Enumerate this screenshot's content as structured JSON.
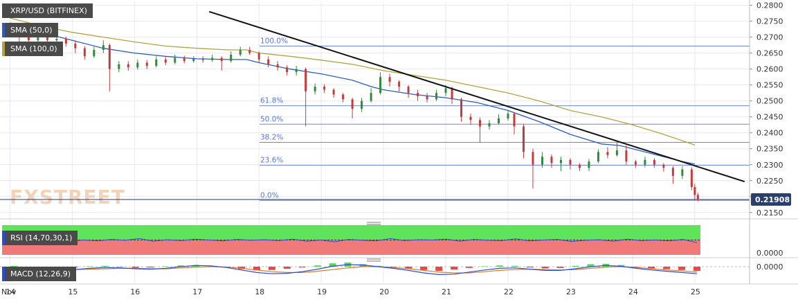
{
  "chart_data": {
    "type": "candlestick",
    "symbol_label": "XRP/USD (BITFINEX)",
    "price_axis": {
      "range": [
        0.213,
        0.281
      ],
      "ticks": [
        "0.2800",
        "0.2750",
        "0.2700",
        "0.2650",
        "0.2600",
        "0.2550",
        "0.2500",
        "0.2450",
        "0.2400",
        "0.2350",
        "0.2300",
        "0.2250",
        "0.2200",
        "0.2150"
      ],
      "current_price_label": "0.21908",
      "current_price": 0.21908
    },
    "x_axis": {
      "start_label": "Nov",
      "labels": [
        "14",
        "15",
        "16",
        "17",
        "18",
        "19",
        "20",
        "21",
        "22",
        "23",
        "24",
        "25"
      ]
    },
    "indicators": {
      "sma50": {
        "label": "SMA (50,0)",
        "color": "#2a5cc8",
        "values": [
          [
            14.0,
            0.2745
          ],
          [
            14.5,
            0.2715
          ],
          [
            15.0,
            0.269
          ],
          [
            15.5,
            0.2665
          ],
          [
            16.0,
            0.265
          ],
          [
            16.5,
            0.264
          ],
          [
            17.0,
            0.2632
          ],
          [
            17.5,
            0.263
          ],
          [
            17.8,
            0.263
          ],
          [
            18.0,
            0.262
          ],
          [
            18.5,
            0.26
          ],
          [
            19.0,
            0.2585
          ],
          [
            19.5,
            0.2565
          ],
          [
            19.8,
            0.2545
          ],
          [
            20.0,
            0.2535
          ],
          [
            20.5,
            0.252
          ],
          [
            21.0,
            0.251
          ],
          [
            21.5,
            0.2495
          ],
          [
            22.0,
            0.247
          ],
          [
            22.5,
            0.2435
          ],
          [
            23.0,
            0.2395
          ],
          [
            23.5,
            0.2365
          ],
          [
            23.8,
            0.236
          ],
          [
            24.0,
            0.235
          ],
          [
            24.5,
            0.2325
          ],
          [
            24.8,
            0.231
          ],
          [
            25.0,
            0.2302
          ]
        ]
      },
      "sma100": {
        "label": "SMA (100,0)",
        "color": "#b5a33b",
        "values": [
          [
            14.0,
            0.276
          ],
          [
            14.5,
            0.2735
          ],
          [
            15.0,
            0.2715
          ],
          [
            15.5,
            0.27
          ],
          [
            16.0,
            0.2685
          ],
          [
            16.5,
            0.2672
          ],
          [
            17.0,
            0.2665
          ],
          [
            17.5,
            0.266
          ],
          [
            17.8,
            0.266
          ],
          [
            18.0,
            0.265
          ],
          [
            18.5,
            0.264
          ],
          [
            19.0,
            0.2628
          ],
          [
            19.5,
            0.2615
          ],
          [
            20.0,
            0.2595
          ],
          [
            20.5,
            0.258
          ],
          [
            21.0,
            0.2565
          ],
          [
            21.5,
            0.2545
          ],
          [
            22.0,
            0.2525
          ],
          [
            22.5,
            0.25
          ],
          [
            23.0,
            0.247
          ],
          [
            23.5,
            0.245
          ],
          [
            24.0,
            0.2425
          ],
          [
            24.5,
            0.2395
          ],
          [
            25.0,
            0.2362
          ]
        ]
      }
    },
    "trendline": {
      "color": "#111111",
      "from": [
        17.2,
        0.278
      ],
      "to": [
        25.8,
        0.2247
      ]
    },
    "fibonacci": {
      "color": "#5b78d6",
      "levels": [
        {
          "label": "100.0%",
          "price": 0.2672
        },
        {
          "label": "61.8%",
          "price": 0.2485
        },
        {
          "label": "50.0%",
          "price": 0.2427
        },
        {
          "label": "38.2%",
          "price": 0.237
        },
        {
          "label": "23.6%",
          "price": 0.2298
        },
        {
          "label": "0.0%",
          "price": 0.2188
        }
      ]
    },
    "candles": [
      [
        14.0,
        0.2735,
        0.273,
        0.2745,
        0.272
      ],
      [
        14.15,
        0.273,
        0.27,
        0.274,
        0.2685
      ],
      [
        14.3,
        0.27,
        0.269,
        0.2715,
        0.267
      ],
      [
        14.45,
        0.269,
        0.2705,
        0.272,
        0.268
      ],
      [
        14.6,
        0.2705,
        0.269,
        0.2715,
        0.2675
      ],
      [
        14.75,
        0.269,
        0.2695,
        0.2705,
        0.268
      ],
      [
        14.9,
        0.2695,
        0.268,
        0.2702,
        0.267
      ],
      [
        15.05,
        0.268,
        0.2665,
        0.269,
        0.265
      ],
      [
        15.2,
        0.2665,
        0.264,
        0.2672,
        0.263
      ],
      [
        15.35,
        0.264,
        0.266,
        0.267,
        0.2635
      ],
      [
        15.5,
        0.266,
        0.2675,
        0.269,
        0.265
      ],
      [
        15.6,
        0.2675,
        0.26,
        0.268,
        0.253
      ],
      [
        15.75,
        0.26,
        0.2615,
        0.2625,
        0.259
      ],
      [
        15.9,
        0.2615,
        0.2605,
        0.2625,
        0.2595
      ],
      [
        16.05,
        0.2605,
        0.262,
        0.263,
        0.2598
      ],
      [
        16.2,
        0.262,
        0.261,
        0.2628,
        0.26
      ],
      [
        16.35,
        0.261,
        0.263,
        0.264,
        0.2605
      ],
      [
        16.5,
        0.263,
        0.262,
        0.2638,
        0.2612
      ],
      [
        16.65,
        0.262,
        0.2635,
        0.2645,
        0.2615
      ],
      [
        16.8,
        0.2635,
        0.2625,
        0.2642,
        0.2618
      ],
      [
        16.95,
        0.2625,
        0.2632,
        0.264,
        0.262
      ],
      [
        17.1,
        0.2632,
        0.2628,
        0.264,
        0.262
      ],
      [
        17.25,
        0.2628,
        0.2635,
        0.2645,
        0.2622
      ],
      [
        17.4,
        0.2635,
        0.2625,
        0.264,
        0.2595
      ],
      [
        17.55,
        0.2625,
        0.2645,
        0.2655,
        0.262
      ],
      [
        17.7,
        0.2645,
        0.266,
        0.267,
        0.264
      ],
      [
        17.85,
        0.266,
        0.265,
        0.267,
        0.2645
      ],
      [
        18.0,
        0.265,
        0.263,
        0.2655,
        0.262
      ],
      [
        18.15,
        0.263,
        0.2615,
        0.264,
        0.2605
      ],
      [
        18.3,
        0.2615,
        0.2605,
        0.2625,
        0.2595
      ],
      [
        18.45,
        0.2605,
        0.259,
        0.2612,
        0.258
      ],
      [
        18.6,
        0.259,
        0.26,
        0.261,
        0.258
      ],
      [
        18.75,
        0.26,
        0.253,
        0.2605,
        0.242
      ],
      [
        18.9,
        0.253,
        0.2545,
        0.2555,
        0.252
      ],
      [
        19.05,
        0.2545,
        0.2535,
        0.2552,
        0.2525
      ],
      [
        19.2,
        0.2535,
        0.252,
        0.254,
        0.251
      ],
      [
        19.35,
        0.252,
        0.2505,
        0.2525,
        0.2495
      ],
      [
        19.5,
        0.2505,
        0.2475,
        0.251,
        0.2445
      ],
      [
        19.65,
        0.2475,
        0.25,
        0.251,
        0.2465
      ],
      [
        19.8,
        0.25,
        0.2525,
        0.254,
        0.2495
      ],
      [
        19.95,
        0.2525,
        0.2575,
        0.259,
        0.252
      ],
      [
        20.1,
        0.2575,
        0.256,
        0.2585,
        0.2545
      ],
      [
        20.25,
        0.256,
        0.2545,
        0.2565,
        0.253
      ],
      [
        20.4,
        0.2545,
        0.2525,
        0.255,
        0.251
      ],
      [
        20.55,
        0.2525,
        0.2515,
        0.2535,
        0.25
      ],
      [
        20.7,
        0.2515,
        0.2505,
        0.2525,
        0.2495
      ],
      [
        20.85,
        0.2505,
        0.2525,
        0.2535,
        0.25
      ],
      [
        21.0,
        0.2525,
        0.254,
        0.255,
        0.2515
      ],
      [
        21.1,
        0.254,
        0.2505,
        0.2545,
        0.249
      ],
      [
        21.25,
        0.2505,
        0.245,
        0.251,
        0.2435
      ],
      [
        21.4,
        0.245,
        0.244,
        0.246,
        0.2425
      ],
      [
        21.55,
        0.244,
        0.242,
        0.2448,
        0.237
      ],
      [
        21.7,
        0.242,
        0.243,
        0.244,
        0.241
      ],
      [
        21.85,
        0.243,
        0.2445,
        0.2458,
        0.2425
      ],
      [
        22.0,
        0.2445,
        0.246,
        0.247,
        0.2438
      ],
      [
        22.1,
        0.246,
        0.242,
        0.2465,
        0.2395
      ],
      [
        22.25,
        0.242,
        0.234,
        0.2428,
        0.232
      ],
      [
        22.4,
        0.234,
        0.23,
        0.235,
        0.2225
      ],
      [
        22.55,
        0.23,
        0.2325,
        0.234,
        0.229
      ],
      [
        22.7,
        0.2325,
        0.2305,
        0.2332,
        0.229
      ],
      [
        22.85,
        0.2305,
        0.2315,
        0.2325,
        0.228
      ],
      [
        23.0,
        0.2315,
        0.23,
        0.232,
        0.2285
      ],
      [
        23.15,
        0.23,
        0.229,
        0.2305,
        0.228
      ],
      [
        23.3,
        0.229,
        0.231,
        0.2318,
        0.228
      ],
      [
        23.45,
        0.231,
        0.234,
        0.2348,
        0.2305
      ],
      [
        23.6,
        0.234,
        0.233,
        0.2355,
        0.232
      ],
      [
        23.75,
        0.233,
        0.2345,
        0.237,
        0.2325
      ],
      [
        23.9,
        0.2345,
        0.231,
        0.236,
        0.23
      ],
      [
        24.05,
        0.231,
        0.23,
        0.2315,
        0.229
      ],
      [
        24.2,
        0.23,
        0.2315,
        0.2325,
        0.2292
      ],
      [
        24.35,
        0.2315,
        0.23,
        0.232,
        0.229
      ],
      [
        24.5,
        0.23,
        0.229,
        0.2305,
        0.2278
      ],
      [
        24.65,
        0.229,
        0.2265,
        0.2295,
        0.224
      ],
      [
        24.8,
        0.2265,
        0.2285,
        0.2295,
        0.2255
      ],
      [
        24.95,
        0.2285,
        0.223,
        0.2292,
        0.222
      ],
      [
        25.0,
        0.223,
        0.2205,
        0.224,
        0.2188
      ],
      [
        25.05,
        0.2205,
        0.219,
        0.2212,
        0.2185
      ]
    ],
    "rsi_panel": {
      "label": "RSI (14,70,30,1)",
      "tick": "0.0000",
      "overbought_color": "#5fe35a",
      "oversold_color": "#f07a7a",
      "line_color": "#2a4bd8",
      "values": [
        55,
        52,
        48,
        51,
        45,
        50,
        47,
        52,
        49,
        55,
        46,
        51,
        48,
        53,
        50,
        47,
        52,
        49,
        51,
        48,
        53,
        46,
        50,
        44,
        52,
        49,
        47,
        55,
        48,
        51,
        50,
        53,
        46,
        52,
        49,
        48,
        54,
        47,
        50,
        52,
        45,
        49,
        51,
        46,
        53,
        48,
        50,
        47,
        52,
        41
      ]
    },
    "macd_panel": {
      "label": "MACD (12,26,9)",
      "tick": "0.0000",
      "macd_color": "#2a4bd8",
      "signal_color": "#e07a22",
      "hist_up_color": "#3bd13b",
      "hist_down_color": "#e02a2a",
      "hist": [
        0.2,
        -0.3,
        -0.5,
        -0.4,
        -0.2,
        0.1,
        0.2,
        -0.1,
        -0.3,
        -0.2,
        0.1,
        0.3,
        0.4,
        0.2,
        -0.2,
        -0.6,
        -0.9,
        -0.8,
        -0.5,
        -0.2,
        0.3,
        0.8,
        1.0,
        0.6,
        0.2,
        -0.1,
        -0.4,
        -0.8,
        -1.0,
        -0.7,
        -0.3,
        0.1,
        0.3,
        0.2,
        -0.2,
        -0.4,
        -0.3,
        0.2,
        0.6,
        0.7,
        0.4,
        -0.1,
        -0.4,
        -0.6,
        -0.8,
        -1.0
      ],
      "macd": [
        -0.2,
        -0.5,
        -0.8,
        -0.9,
        -0.7,
        -0.4,
        -0.2,
        -0.3,
        -0.5,
        -0.6,
        -0.4,
        0.0,
        0.3,
        0.2,
        -0.2,
        -0.8,
        -1.4,
        -1.7,
        -1.6,
        -1.2,
        -0.6,
        0.1,
        0.5,
        0.4,
        0.0,
        -0.4,
        -0.9,
        -1.5,
        -1.9,
        -1.8,
        -1.3,
        -0.8,
        -0.4,
        -0.3,
        -0.6,
        -0.9,
        -0.9,
        -0.5,
        0.0,
        0.3,
        0.1,
        -0.4,
        -0.8,
        -1.1,
        -1.4,
        -1.7
      ],
      "signal": [
        -0.1,
        -0.3,
        -0.5,
        -0.7,
        -0.7,
        -0.6,
        -0.5,
        -0.4,
        -0.4,
        -0.5,
        -0.5,
        -0.3,
        -0.1,
        0.0,
        -0.1,
        -0.4,
        -0.8,
        -1.2,
        -1.4,
        -1.4,
        -1.1,
        -0.7,
        -0.3,
        0.0,
        0.0,
        -0.2,
        -0.5,
        -0.9,
        -1.3,
        -1.5,
        -1.5,
        -1.2,
        -0.9,
        -0.7,
        -0.6,
        -0.7,
        -0.8,
        -0.7,
        -0.4,
        -0.1,
        0.0,
        -0.2,
        -0.5,
        -0.8,
        -1.0,
        -1.3
      ]
    }
  },
  "watermark": "FXSTREET",
  "colors": {
    "background": "#ffffff",
    "grid": "#e8e8ee",
    "up_candle": "#2f8a3a",
    "down_candle": "#c83a3a",
    "legend_bg": "#4a4a4a"
  }
}
